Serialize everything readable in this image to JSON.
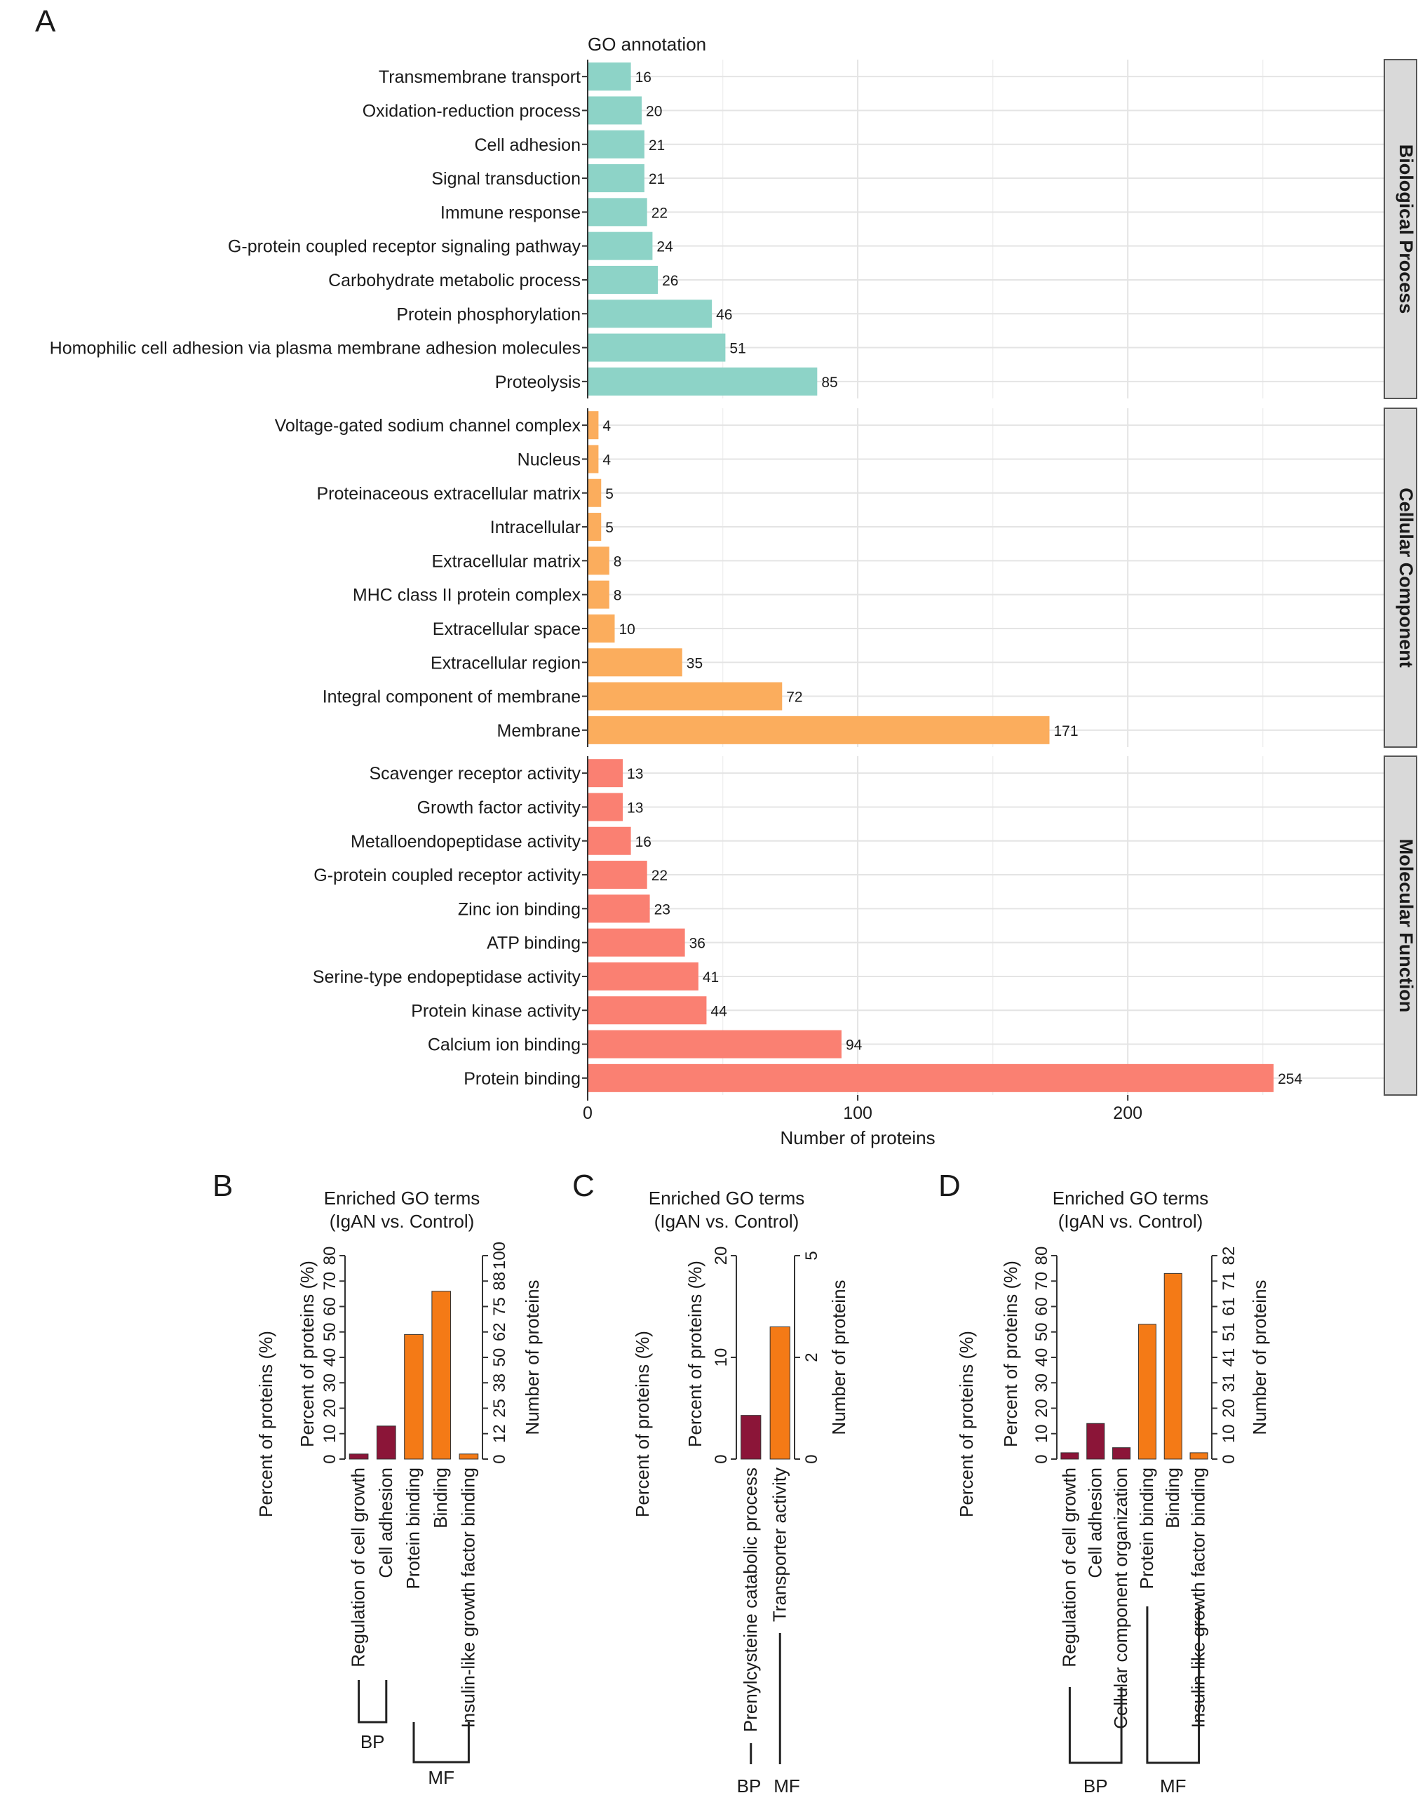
{
  "panel_labels": {
    "a": "A",
    "b": "B",
    "c": "C",
    "d": "D"
  },
  "chart_data": [
    {
      "type": "bar",
      "orientation": "horizontal",
      "panel": "A",
      "title": "GO annotation",
      "xlabel": "Number of proteins",
      "xlim": [
        0,
        295
      ],
      "xticks": [
        0,
        100,
        200
      ],
      "grid": true,
      "facets": [
        {
          "name": "Biological Process",
          "color": "#8dd3c7",
          "categories": [
            "Transmembrane transport",
            "Oxidation-reduction process",
            "Cell adhesion",
            "Signal transduction",
            "Immune response",
            "G-protein coupled receptor signaling pathway",
            "Carbohydrate metabolic process",
            "Protein phosphorylation",
            "Homophilic cell adhesion via plasma membrane adhesion molecules",
            "Proteolysis"
          ],
          "values": [
            16,
            20,
            21,
            21,
            22,
            24,
            26,
            46,
            51,
            85
          ]
        },
        {
          "name": "Cellular Component",
          "color": "#fbad5d",
          "categories": [
            "Voltage-gated sodium channel complex",
            "Nucleus",
            "Proteinaceous extracellular matrix",
            "Intracellular",
            "Extracellular matrix",
            "MHC class II protein complex",
            "Extracellular space",
            "Extracellular region",
            "Integral component of membrane",
            "Membrane"
          ],
          "values": [
            4,
            4,
            5,
            5,
            8,
            8,
            10,
            35,
            72,
            171
          ]
        },
        {
          "name": "Molecular Function",
          "color": "#fa8072",
          "categories": [
            "Scavenger receptor activity",
            "Growth factor activity",
            "Metalloendopeptidase activity",
            "G-protein coupled receptor activity",
            "Zinc ion binding",
            "ATP binding",
            "Serine-type endopeptidase activity",
            "Protein kinase activity",
            "Calcium ion binding",
            "Protein binding"
          ],
          "values": [
            13,
            13,
            16,
            22,
            23,
            36,
            41,
            44,
            94,
            254
          ]
        }
      ]
    },
    {
      "type": "bar",
      "panel": "B",
      "title": [
        "Enriched GO terms",
        "(IgAN vs. Control)"
      ],
      "ylabel_outer": "Percent of proteins (%)",
      "ylabel_left": "Percent of proteins (%)",
      "ylabel_right": "Number of proteins",
      "ylim": [
        0,
        80
      ],
      "left_ticks": [
        "0",
        "10",
        "20",
        "30",
        "40",
        "50",
        "60",
        "70",
        "80"
      ],
      "right_ticks": [
        "0",
        "12",
        "25",
        "38",
        "50",
        "62",
        "75",
        "88",
        "100"
      ],
      "categories": [
        "Regulation of cell growth",
        "Cell adhesion",
        "Protein binding",
        "Binding",
        "Insulin-like growth factor binding"
      ],
      "values": [
        2,
        13,
        49,
        66,
        2
      ],
      "groups": [
        "BP",
        "BP",
        "MF",
        "MF",
        "MF"
      ],
      "group_labels": [
        "BP",
        "MF"
      ],
      "colors": {
        "BP": "#8b1538",
        "MF": "#f47a16"
      }
    },
    {
      "type": "bar",
      "panel": "C",
      "title": [
        "Enriched GO terms",
        "(IgAN vs. Control)"
      ],
      "ylabel_outer": "Percent of proteins (%)",
      "ylabel_left": "Percent of proteins (%)",
      "ylabel_right": "Number of proteins",
      "ylim": [
        0,
        20
      ],
      "left_ticks": [
        "0",
        "10",
        "20"
      ],
      "right_ticks": [
        "0",
        "2",
        "5"
      ],
      "categories": [
        "Prenylcysteine catabolic process",
        "Transporter activity"
      ],
      "values": [
        4.3,
        13
      ],
      "groups": [
        "BP",
        "MF"
      ],
      "group_labels": [
        "BP",
        "MF"
      ],
      "colors": {
        "BP": "#8b1538",
        "MF": "#f47a16"
      }
    },
    {
      "type": "bar",
      "panel": "D",
      "title": [
        "Enriched GO terms",
        "(IgAN vs. Control)"
      ],
      "ylabel_outer": "Percent of proteins (%)",
      "ylabel_left": "Percent of proteins (%)",
      "ylabel_right": "Number of proteins",
      "ylim": [
        0,
        80
      ],
      "left_ticks": [
        "0",
        "10",
        "20",
        "30",
        "40",
        "50",
        "60",
        "70",
        "80"
      ],
      "right_ticks": [
        "0",
        "10",
        "20",
        "31",
        "41",
        "51",
        "61",
        "71",
        "82"
      ],
      "categories": [
        "Regulation of cell growth",
        "Cell adhesion",
        "Cellular component organization",
        "Protein binding",
        "Binding",
        "Insulin-like growth factor binding"
      ],
      "values": [
        2.5,
        14,
        4.5,
        53,
        73,
        2.5
      ],
      "groups": [
        "BP",
        "BP",
        "BP",
        "MF",
        "MF",
        "MF"
      ],
      "group_labels": [
        "BP",
        "MF"
      ],
      "colors": {
        "BP": "#8b1538",
        "MF": "#f47a16"
      }
    }
  ]
}
